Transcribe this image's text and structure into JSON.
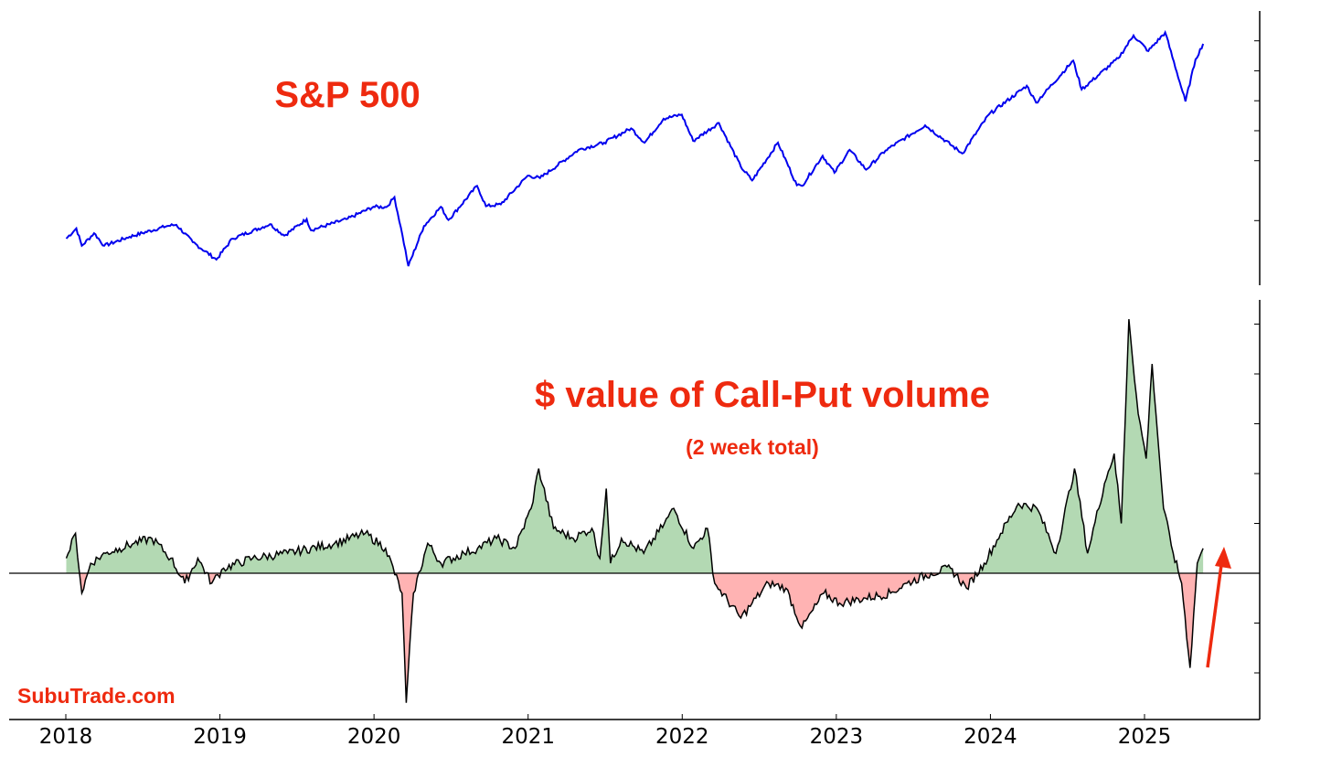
{
  "chart_data": [
    {
      "type": "line",
      "title": "S&P 500",
      "ylabel": "",
      "xlabel": "",
      "y_tick_labels_shown": false,
      "color": "#0000ee",
      "ylim": [
        2150,
        6300
      ],
      "series": [
        {
          "x": [
            "2018-01-02",
            "2018-01-26",
            "2018-02-08",
            "2018-03-09",
            "2018-04-02",
            "2018-06-01",
            "2018-08-29",
            "2018-09-20",
            "2018-10-29",
            "2018-12-24",
            "2019-01-31",
            "2019-04-30",
            "2019-06-03",
            "2019-07-26",
            "2019-08-05",
            "2019-10-31",
            "2019-12-31",
            "2020-01-31",
            "2020-02-19",
            "2020-03-09",
            "2020-03-23",
            "2020-04-29",
            "2020-06-08",
            "2020-06-26",
            "2020-09-02",
            "2020-09-23",
            "2020-10-28",
            "2020-12-31",
            "2021-01-29",
            "2021-04-30",
            "2021-06-30",
            "2021-09-02",
            "2021-10-04",
            "2021-11-18",
            "2021-12-31",
            "2022-01-27",
            "2022-03-29",
            "2022-05-20",
            "2022-06-16",
            "2022-08-16",
            "2022-09-30",
            "2022-10-12",
            "2022-11-30",
            "2022-12-28",
            "2023-02-02",
            "2023-03-13",
            "2023-04-28",
            "2023-07-31",
            "2023-10-27",
            "2023-12-29",
            "2024-03-28",
            "2024-04-19",
            "2024-07-16",
            "2024-08-05",
            "2024-10-31",
            "2024-12-06",
            "2025-01-10",
            "2025-02-19",
            "2025-04-08",
            "2025-05-02",
            "2025-05-20"
          ],
          "values": [
            2700,
            2870,
            2580,
            2790,
            2580,
            2730,
            2910,
            2930,
            2640,
            2350,
            2700,
            2940,
            2750,
            3025,
            2840,
            3030,
            3230,
            3225,
            3390,
            2750,
            2240,
            2910,
            3230,
            3010,
            3580,
            3240,
            3270,
            3750,
            3710,
            4180,
            4300,
            4540,
            4300,
            4700,
            4770,
            4330,
            4630,
            3900,
            3670,
            4300,
            3590,
            3580,
            4080,
            3800,
            4180,
            3850,
            4170,
            4590,
            4120,
            4770,
            5250,
            4970,
            5670,
            5190,
            5710,
            6090,
            5830,
            6140,
            4990,
            5690,
            5950
          ]
        }
      ]
    },
    {
      "type": "area",
      "title": "$ value of Call-Put volume",
      "subtitle": "(2 week total)",
      "ylabel": "",
      "xlabel": "",
      "y_tick_labels_shown": false,
      "ylim": [
        -3.0,
        5.3
      ],
      "positive_color": "#b3d9b3",
      "negative_color": "#ffb3b3",
      "line_color": "#000000",
      "series": [
        {
          "x": [
            "2018-01-02",
            "2018-01-24",
            "2018-02-08",
            "2018-03-01",
            "2018-04-05",
            "2018-05-08",
            "2018-06-12",
            "2018-07-24",
            "2018-09-07",
            "2018-10-10",
            "2018-11-10",
            "2018-12-13",
            "2019-01-10",
            "2019-03-20",
            "2019-06-11",
            "2019-09-30",
            "2019-12-12",
            "2020-01-29",
            "2020-03-08",
            "2020-03-18",
            "2020-04-04",
            "2020-05-08",
            "2020-06-08",
            "2020-08-02",
            "2020-09-03",
            "2020-10-18",
            "2020-12-01",
            "2021-01-08",
            "2021-01-26",
            "2021-03-02",
            "2021-04-18",
            "2021-06-01",
            "2021-06-20",
            "2021-07-05",
            "2021-07-15",
            "2021-08-10",
            "2021-10-02",
            "2021-11-20",
            "2021-12-12",
            "2022-01-28",
            "2022-03-02",
            "2022-03-19",
            "2022-05-20",
            "2022-06-16",
            "2022-07-25",
            "2022-09-04",
            "2022-10-12",
            "2022-12-03",
            "2023-01-09",
            "2023-03-12",
            "2023-05-10",
            "2023-06-18",
            "2023-08-14",
            "2023-09-29",
            "2023-11-06",
            "2023-12-18",
            "2024-01-26",
            "2024-03-08",
            "2024-04-21",
            "2024-06-05",
            "2024-07-19",
            "2024-08-19",
            "2024-09-28",
            "2024-10-21",
            "2024-11-07",
            "2024-11-25",
            "2024-12-17",
            "2025-01-05",
            "2025-01-19",
            "2025-02-15",
            "2025-03-10",
            "2025-03-30",
            "2025-04-19",
            "2025-05-06",
            "2025-05-20"
          ],
          "values": [
            0.3,
            0.8,
            -0.4,
            0.2,
            0.4,
            0.5,
            0.6,
            0.7,
            0.3,
            -0.2,
            0.3,
            -0.2,
            0.1,
            0.3,
            0.4,
            0.6,
            0.8,
            0.5,
            -0.4,
            -2.6,
            -0.4,
            0.6,
            0.2,
            0.4,
            0.5,
            0.7,
            0.5,
            1.3,
            2.1,
            0.9,
            0.7,
            0.9,
            0.3,
            1.7,
            0.2,
            0.7,
            0.4,
            1.0,
            1.3,
            0.5,
            0.9,
            -0.2,
            -0.9,
            -0.6,
            -0.2,
            -0.3,
            -1.1,
            -0.4,
            -0.6,
            -0.5,
            -0.4,
            -0.2,
            0.0,
            0.1,
            -0.3,
            0.2,
            0.8,
            1.4,
            1.3,
            0.4,
            2.1,
            0.4,
            1.8,
            2.4,
            1.0,
            5.1,
            3.2,
            2.3,
            4.2,
            1.3,
            0.4,
            -0.2,
            -1.9,
            0.2,
            0.5
          ]
        }
      ]
    }
  ],
  "x_axis": {
    "tick_labels": [
      "2018",
      "2019",
      "2020",
      "2021",
      "2022",
      "2023",
      "2024",
      "2025"
    ]
  },
  "annotations": {
    "watermark": "SubuTrade.com",
    "arrow_color": "#ee2a0f"
  }
}
